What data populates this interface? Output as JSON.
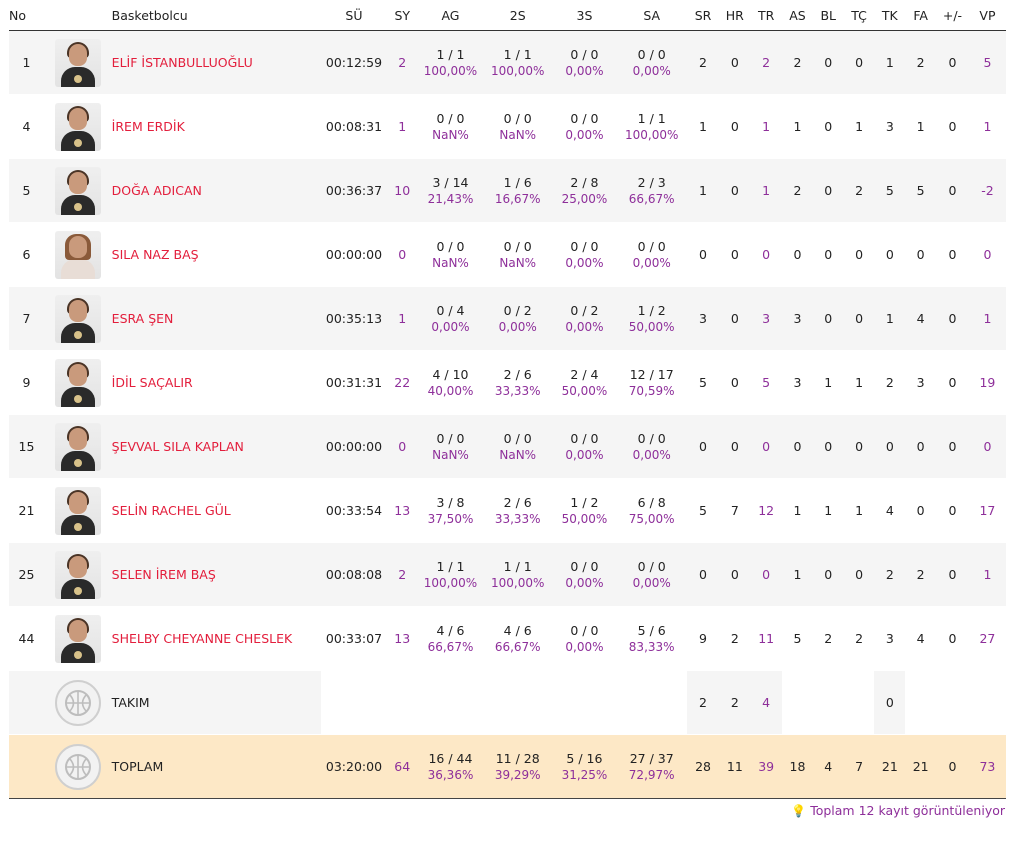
{
  "headers": [
    "No",
    "",
    "Basketbolcu",
    "SÜ",
    "SY",
    "AG",
    "2S",
    "3S",
    "SA",
    "SR",
    "HR",
    "TR",
    "AS",
    "BL",
    "TÇ",
    "TK",
    "FA",
    "+/-",
    "VP"
  ],
  "players": [
    {
      "no": "1",
      "name": "ELİF İSTANBULLUOĞLU",
      "su": "00:12:59",
      "sy": "2",
      "ag": "1 / 1",
      "ag_pct": "100,00%",
      "s2": "1 / 1",
      "s2_pct": "100,00%",
      "s3": "0 / 0",
      "s3_pct": "0,00%",
      "sa": "0 / 0",
      "sa_pct": "0,00%",
      "sr": "2",
      "hr": "0",
      "tr": "2",
      "as": "2",
      "bl": "0",
      "tc": "0",
      "tk": "1",
      "fa": "2",
      "pm": "0",
      "vp": "5"
    },
    {
      "no": "4",
      "name": "İREM ERDİK",
      "su": "00:08:31",
      "sy": "1",
      "ag": "0 / 0",
      "ag_pct": "NaN%",
      "s2": "0 / 0",
      "s2_pct": "NaN%",
      "s3": "0 / 0",
      "s3_pct": "0,00%",
      "sa": "1 / 1",
      "sa_pct": "100,00%",
      "sr": "1",
      "hr": "0",
      "tr": "1",
      "as": "1",
      "bl": "0",
      "tc": "1",
      "tk": "3",
      "fa": "1",
      "pm": "0",
      "vp": "1"
    },
    {
      "no": "5",
      "name": "DOĞA ADICAN",
      "su": "00:36:37",
      "sy": "10",
      "ag": "3 / 14",
      "ag_pct": "21,43%",
      "s2": "1 / 6",
      "s2_pct": "16,67%",
      "s3": "2 / 8",
      "s3_pct": "25,00%",
      "sa": "2 / 3",
      "sa_pct": "66,67%",
      "sr": "1",
      "hr": "0",
      "tr": "1",
      "as": "2",
      "bl": "0",
      "tc": "2",
      "tk": "5",
      "fa": "5",
      "pm": "0",
      "vp": "-2"
    },
    {
      "no": "6",
      "name": "SILA NAZ BAŞ",
      "su": "00:00:00",
      "sy": "0",
      "ag": "0 / 0",
      "ag_pct": "NaN%",
      "s2": "0 / 0",
      "s2_pct": "NaN%",
      "s3": "0 / 0",
      "s3_pct": "0,00%",
      "sa": "0 / 0",
      "sa_pct": "0,00%",
      "sr": "0",
      "hr": "0",
      "tr": "0",
      "as": "0",
      "bl": "0",
      "tc": "0",
      "tk": "0",
      "fa": "0",
      "pm": "0",
      "vp": "0"
    },
    {
      "no": "7",
      "name": "ESRA ŞEN",
      "su": "00:35:13",
      "sy": "1",
      "ag": "0 / 4",
      "ag_pct": "0,00%",
      "s2": "0 / 2",
      "s2_pct": "0,00%",
      "s3": "0 / 2",
      "s3_pct": "0,00%",
      "sa": "1 / 2",
      "sa_pct": "50,00%",
      "sr": "3",
      "hr": "0",
      "tr": "3",
      "as": "3",
      "bl": "0",
      "tc": "0",
      "tk": "1",
      "fa": "4",
      "pm": "0",
      "vp": "1"
    },
    {
      "no": "9",
      "name": "İDİL SAÇALIR",
      "su": "00:31:31",
      "sy": "22",
      "ag": "4 / 10",
      "ag_pct": "40,00%",
      "s2": "2 / 6",
      "s2_pct": "33,33%",
      "s3": "2 / 4",
      "s3_pct": "50,00%",
      "sa": "12 / 17",
      "sa_pct": "70,59%",
      "sr": "5",
      "hr": "0",
      "tr": "5",
      "as": "3",
      "bl": "1",
      "tc": "1",
      "tk": "2",
      "fa": "3",
      "pm": "0",
      "vp": "19"
    },
    {
      "no": "15",
      "name": "ŞEVVAL SILA KAPLAN",
      "su": "00:00:00",
      "sy": "0",
      "ag": "0 / 0",
      "ag_pct": "NaN%",
      "s2": "0 / 0",
      "s2_pct": "NaN%",
      "s3": "0 / 0",
      "s3_pct": "0,00%",
      "sa": "0 / 0",
      "sa_pct": "0,00%",
      "sr": "0",
      "hr": "0",
      "tr": "0",
      "as": "0",
      "bl": "0",
      "tc": "0",
      "tk": "0",
      "fa": "0",
      "pm": "0",
      "vp": "0"
    },
    {
      "no": "21",
      "name": "SELİN RACHEL GÜL",
      "su": "00:33:54",
      "sy": "13",
      "ag": "3 / 8",
      "ag_pct": "37,50%",
      "s2": "2 / 6",
      "s2_pct": "33,33%",
      "s3": "1 / 2",
      "s3_pct": "50,00%",
      "sa": "6 / 8",
      "sa_pct": "75,00%",
      "sr": "5",
      "hr": "7",
      "tr": "12",
      "as": "1",
      "bl": "1",
      "tc": "1",
      "tk": "4",
      "fa": "0",
      "pm": "0",
      "vp": "17"
    },
    {
      "no": "25",
      "name": "SELEN İREM BAŞ",
      "su": "00:08:08",
      "sy": "2",
      "ag": "1 / 1",
      "ag_pct": "100,00%",
      "s2": "1 / 1",
      "s2_pct": "100,00%",
      "s3": "0 / 0",
      "s3_pct": "0,00%",
      "sa": "0 / 0",
      "sa_pct": "0,00%",
      "sr": "0",
      "hr": "0",
      "tr": "0",
      "as": "1",
      "bl": "0",
      "tc": "0",
      "tk": "2",
      "fa": "2",
      "pm": "0",
      "vp": "1"
    },
    {
      "no": "44",
      "name": "SHELBY CHEYANNE CHESLEK",
      "su": "00:33:07",
      "sy": "13",
      "ag": "4 / 6",
      "ag_pct": "66,67%",
      "s2": "4 / 6",
      "s2_pct": "66,67%",
      "s3": "0 / 0",
      "s3_pct": "0,00%",
      "sa": "5 / 6",
      "sa_pct": "83,33%",
      "sr": "9",
      "hr": "2",
      "tr": "11",
      "as": "5",
      "bl": "2",
      "tc": "2",
      "tk": "3",
      "fa": "4",
      "pm": "0",
      "vp": "27"
    }
  ],
  "team": {
    "name": "TAKIM",
    "sr": "2",
    "hr": "2",
    "tr": "4",
    "tk": "0"
  },
  "total": {
    "name": "TOPLAM",
    "su": "03:20:00",
    "sy": "64",
    "ag": "16 / 44",
    "ag_pct": "36,36%",
    "s2": "11 / 28",
    "s2_pct": "39,29%",
    "s3": "5 / 16",
    "s3_pct": "31,25%",
    "sa": "27 / 37",
    "sa_pct": "72,97%",
    "sr": "28",
    "hr": "11",
    "tr": "39",
    "as": "18",
    "bl": "4",
    "tc": "7",
    "tk": "21",
    "fa": "21",
    "pm": "0",
    "vp": "73"
  },
  "footer": {
    "icon": "lightbulb-icon",
    "text": "Toplam 12 kayıt görüntüleniyor"
  },
  "colors": {
    "accent_red": "#e31e3c",
    "accent_purple": "#8e2f9a",
    "total_row_bg": "#fde8c6",
    "stripe_bg": "#f5f5f5"
  }
}
